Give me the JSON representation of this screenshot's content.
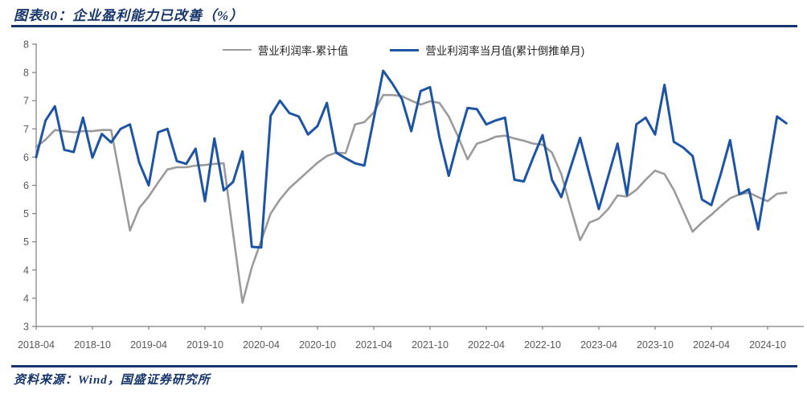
{
  "header": {
    "title": "图表80：企业盈利能力已改善（%）"
  },
  "footer": {
    "source": "资料来源：Wind，国盛证券研究所"
  },
  "colors": {
    "accent_navy": "#17366b",
    "line_gray": "#9b9b9b",
    "line_blue": "#1d54a3",
    "axis_gray": "#7f7f7f",
    "tick_text": "#595959"
  },
  "chart_data": {
    "type": "line",
    "title": "企业盈利能力已改善（%）",
    "xlabel": "",
    "ylabel": "",
    "ylim": [
      3,
      8
    ],
    "grid": false,
    "legend_position": "top-center",
    "x": [
      "2018-04",
      "2018-05",
      "2018-06",
      "2018-07",
      "2018-08",
      "2018-09",
      "2018-10",
      "2018-11",
      "2018-12",
      "2019-01",
      "2019-02",
      "2019-03",
      "2019-04",
      "2019-05",
      "2019-06",
      "2019-07",
      "2019-08",
      "2019-09",
      "2019-10",
      "2019-11",
      "2019-12",
      "2020-01",
      "2020-02",
      "2020-03",
      "2020-04",
      "2020-05",
      "2020-06",
      "2020-07",
      "2020-08",
      "2020-09",
      "2020-10",
      "2020-11",
      "2020-12",
      "2021-01",
      "2021-02",
      "2021-03",
      "2021-04",
      "2021-05",
      "2021-06",
      "2021-07",
      "2021-08",
      "2021-09",
      "2021-10",
      "2021-11",
      "2021-12",
      "2022-01",
      "2022-02",
      "2022-03",
      "2022-04",
      "2022-05",
      "2022-06",
      "2022-07",
      "2022-08",
      "2022-09",
      "2022-10",
      "2022-11",
      "2022-12",
      "2023-01",
      "2023-02",
      "2023-03",
      "2023-04",
      "2023-05",
      "2023-06",
      "2023-07",
      "2023-08",
      "2023-09",
      "2023-10",
      "2023-11",
      "2023-12",
      "2024-01",
      "2024-02",
      "2024-03",
      "2024-04",
      "2024-05",
      "2024-06",
      "2024-07",
      "2024-08",
      "2024-09",
      "2024-10",
      "2024-11",
      "2024-12"
    ],
    "x_tick_labels": [
      "2018-04",
      "2018-10",
      "2019-04",
      "2019-10",
      "2020-04",
      "2020-10",
      "2021-04",
      "2021-10",
      "2022-04",
      "2022-10",
      "2023-04",
      "2023-10",
      "2024-04",
      "2024-10"
    ],
    "y_ticks": [
      8,
      7.5,
      7,
      6.5,
      6,
      5.5,
      5,
      4.5,
      4,
      3.5,
      3
    ],
    "y_tick_labels": [
      "8",
      "8",
      "7",
      "7",
      "6",
      "6",
      "5",
      "5",
      "4",
      "4",
      "3"
    ],
    "series": [
      {
        "name": "营业利润率-累计值",
        "color": "#9b9b9b",
        "values": [
          6.18,
          6.31,
          6.48,
          6.46,
          6.44,
          6.46,
          6.46,
          6.48,
          6.48,
          5.6,
          4.7,
          5.1,
          5.3,
          5.55,
          5.78,
          5.82,
          5.82,
          5.85,
          5.86,
          5.88,
          5.89,
          4.65,
          3.42,
          4.05,
          4.52,
          5.0,
          5.25,
          5.45,
          5.6,
          5.75,
          5.9,
          6.02,
          6.08,
          6.07,
          6.58,
          6.62,
          6.79,
          7.1,
          7.1,
          7.08,
          7.0,
          6.93,
          6.99,
          6.96,
          6.72,
          6.36,
          5.96,
          6.24,
          6.29,
          6.36,
          6.38,
          6.33,
          6.29,
          6.24,
          6.22,
          6.08,
          5.7,
          5.1,
          4.53,
          4.84,
          4.91,
          5.08,
          5.32,
          5.3,
          5.42,
          5.6,
          5.76,
          5.7,
          5.42,
          5.05,
          4.68,
          4.84,
          4.98,
          5.13,
          5.27,
          5.34,
          5.37,
          5.29,
          5.22,
          5.35,
          5.37
        ]
      },
      {
        "name": "营业利润率当月值(累计倒推单月)",
        "color": "#1d54a3",
        "values": [
          6.0,
          6.65,
          6.9,
          6.13,
          6.09,
          6.7,
          5.99,
          6.41,
          6.26,
          6.5,
          6.58,
          5.9,
          5.5,
          6.44,
          6.5,
          5.93,
          5.88,
          6.15,
          5.22,
          6.33,
          5.41,
          5.56,
          6.1,
          4.41,
          4.4,
          6.73,
          7.0,
          6.78,
          6.72,
          6.4,
          6.55,
          6.96,
          6.08,
          5.98,
          5.89,
          5.85,
          6.68,
          7.53,
          7.3,
          7.03,
          6.46,
          7.17,
          7.24,
          6.35,
          5.67,
          6.3,
          6.87,
          6.85,
          6.58,
          6.65,
          6.7,
          5.6,
          5.57,
          5.99,
          6.39,
          5.6,
          5.29,
          5.82,
          6.34,
          5.7,
          5.08,
          5.66,
          6.24,
          5.33,
          6.58,
          6.7,
          6.4,
          7.28,
          6.27,
          6.17,
          6.02,
          5.25,
          5.15,
          5.7,
          6.3,
          5.34,
          5.43,
          4.72,
          5.72,
          6.72,
          6.6
        ]
      }
    ]
  }
}
